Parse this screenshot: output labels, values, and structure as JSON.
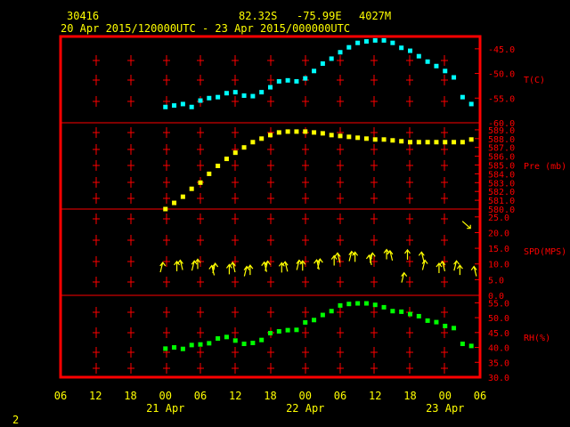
{
  "header": {
    "station": "30416",
    "lat": "82.32S",
    "lon": "-75.99E",
    "elev": "4027M",
    "range": "20 Apr 2015/120000UTC - 23 Apr 2015/000000UTC"
  },
  "footer": {
    "page_number": "2"
  },
  "colors": {
    "frame": "#ff0000",
    "text": "#ffff00",
    "temp": "#00ffff",
    "pres": "#ffff00",
    "rh": "#00ff00",
    "wind": "#ffff00"
  },
  "chart_data": [
    {
      "type": "scatter",
      "panel": "temperature",
      "ylabel": "T(C)",
      "yticks": [
        "-45.0",
        "-50.0",
        "-55.0",
        "-60.0"
      ],
      "ylim": [
        -60,
        -42.5
      ],
      "x_hours_from_20apr_06utc": [
        18,
        19.5,
        21,
        22.5,
        24,
        25.5,
        27,
        28.5,
        30,
        31.5,
        33,
        34.5,
        36,
        37.5,
        39,
        40.5,
        42,
        43.5,
        45,
        46.5,
        48,
        49.5,
        51,
        52.5,
        54,
        55.5,
        57,
        58.5,
        60,
        61.5,
        63,
        64.5,
        66,
        67.5,
        69,
        70.5
      ],
      "values": [
        -56.8,
        -56.5,
        -56.2,
        -56.8,
        -55.5,
        -55,
        -54.8,
        -54,
        -53.8,
        -54.5,
        -54.6,
        -53.8,
        -52.8,
        -51.6,
        -51.4,
        -51.6,
        -51,
        -49.5,
        -48,
        -47,
        -45.7,
        -44.7,
        -43.8,
        -43.5,
        -43.3,
        -43.3,
        -43.8,
        -44.8,
        -45.4,
        -46.5,
        -47.6,
        -48.5,
        -49.5,
        -50.8,
        -54.8,
        -56.2
      ]
    },
    {
      "type": "scatter",
      "panel": "pressure",
      "ylabel": "Pre (mb)",
      "yticks": [
        "589.0",
        "588.0",
        "587.0",
        "586.0",
        "585.0",
        "584.0",
        "583.0",
        "582.0",
        "581.0",
        "580.0"
      ],
      "ylim": [
        580,
        589.8
      ],
      "x_hours_from_20apr_06utc": [
        18,
        19.5,
        21,
        22.5,
        24,
        25.5,
        27,
        28.5,
        30,
        31.5,
        33,
        34.5,
        36,
        37.5,
        39,
        40.5,
        42,
        43.5,
        45,
        46.5,
        48,
        49.5,
        51,
        52.5,
        54,
        55.5,
        57,
        58.5,
        60,
        61.5,
        63,
        64.5,
        66,
        67.5,
        69,
        70.5
      ],
      "values": [
        580.0,
        580.7,
        581.4,
        582.3,
        583.0,
        584.0,
        584.9,
        585.7,
        586.4,
        587.0,
        587.6,
        588.0,
        588.4,
        588.7,
        588.8,
        588.8,
        588.8,
        588.7,
        588.6,
        588.4,
        588.3,
        588.2,
        588.1,
        588.0,
        587.9,
        587.9,
        587.8,
        587.7,
        587.6,
        587.6,
        587.6,
        587.6,
        587.6,
        587.6,
        587.6,
        587.9
      ]
    },
    {
      "type": "scatter",
      "panel": "wind",
      "ylabel": "SPD(MPS)",
      "yticks": [
        "25.0",
        "20.0",
        "15.0",
        "10.0",
        "5.0",
        "0.0"
      ],
      "ylim": [
        0,
        27.5
      ],
      "x_hours_from_20apr_06utc": [
        18,
        19.5,
        21,
        22.5,
        24,
        25.5,
        27,
        28.5,
        30,
        31.5,
        33,
        34.5,
        36,
        37.5,
        39,
        40.5,
        42,
        43.5,
        45,
        46.5,
        48,
        49.5,
        51,
        52.5,
        54,
        55.5,
        57,
        58.5,
        60,
        61.5,
        63,
        64.5,
        66,
        67.5,
        69,
        70.5
      ],
      "values": [
        10.5,
        10.8,
        11.2,
        11,
        11.5,
        9.5,
        10.2,
        9.8,
        10.5,
        9.2,
        9.6,
        10.6,
        10.9,
        10.4,
        10.7,
        11.2,
        11,
        11.3,
        11.6,
        12.6,
        13.5,
        14,
        13.8,
        12.8,
        13.5,
        14.6,
        14.2,
        7.2,
        14.5,
        13.8,
        11.2,
        10.2,
        10.8,
        11,
        9.6,
        9.2
      ],
      "outlier": {
        "x_hours_from_20apr_06utc": 70.5,
        "value": 22.2
      }
    },
    {
      "type": "scatter",
      "panel": "humidity",
      "ylabel": "RH(%)",
      "yticks": [
        "55.0",
        "50.0",
        "45.0",
        "40.0",
        "35.0",
        "30.0"
      ],
      "ylim": [
        30,
        57.5
      ],
      "x_hours_from_20apr_06utc": [
        18,
        19.5,
        21,
        22.5,
        24,
        25.5,
        27,
        28.5,
        30,
        31.5,
        33,
        34.5,
        36,
        37.5,
        39,
        40.5,
        42,
        43.5,
        45,
        46.5,
        48,
        49.5,
        51,
        52.5,
        54,
        55.5,
        57,
        58.5,
        60,
        61.5,
        63,
        64.5,
        66,
        67.5,
        69,
        70.5
      ],
      "values": [
        39.6,
        40,
        39.5,
        40.8,
        41,
        41.4,
        43,
        43.5,
        42.3,
        41.2,
        41.5,
        42.5,
        44.8,
        45.4,
        45.8,
        45.9,
        48.4,
        49.2,
        50.9,
        52.2,
        54.1,
        54.6,
        54.8,
        54.8,
        54.3,
        53.5,
        52.2,
        52,
        51.2,
        50.5,
        49,
        48.5,
        47.2,
        46.5,
        41.2,
        40.5
      ]
    }
  ],
  "xaxis": {
    "ticks": [
      "06",
      "12",
      "18",
      "00",
      "06",
      "12",
      "18",
      "00",
      "06",
      "12",
      "18",
      "00",
      "06"
    ],
    "days": [
      "21 Apr",
      "22 Apr",
      "23 Apr"
    ]
  }
}
